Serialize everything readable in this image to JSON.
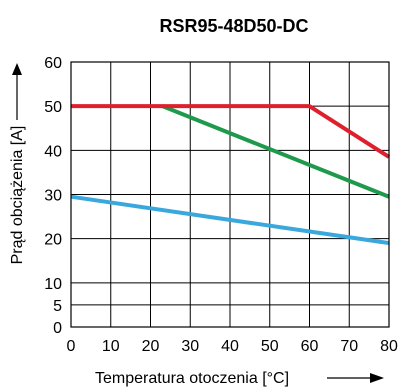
{
  "chart_data": {
    "type": "line",
    "title": "RSR95-48D50-DC",
    "xlabel": "Temperatura otoczenia [°C]",
    "ylabel": "Prąd obciążenia [A]",
    "xlim": [
      0,
      80
    ],
    "ylim": [
      0,
      60
    ],
    "x_ticks": [
      "0",
      "10",
      "20",
      "30",
      "40",
      "50",
      "60",
      "70",
      "80"
    ],
    "y_ticks": [
      "0",
      "5",
      "10",
      "20",
      "30",
      "40",
      "50",
      "60"
    ],
    "y_tick_values": [
      0,
      5,
      10,
      20,
      30,
      40,
      50,
      60
    ],
    "x_gridlines": [
      10,
      20,
      30,
      40,
      50,
      60,
      70
    ],
    "y_gridlines": [
      5,
      10,
      20,
      30,
      40,
      50
    ],
    "grid": true,
    "series": [
      {
        "color": "#3aa8dd",
        "x": [
          0,
          80
        ],
        "y": [
          29.5,
          19
        ]
      },
      {
        "color": "#1e9a4c",
        "x": [
          23,
          80
        ],
        "y": [
          50,
          29.5
        ]
      },
      {
        "color": "#e01f2d",
        "x": [
          0,
          60,
          80
        ],
        "y": [
          50,
          50,
          38.5
        ]
      }
    ]
  }
}
